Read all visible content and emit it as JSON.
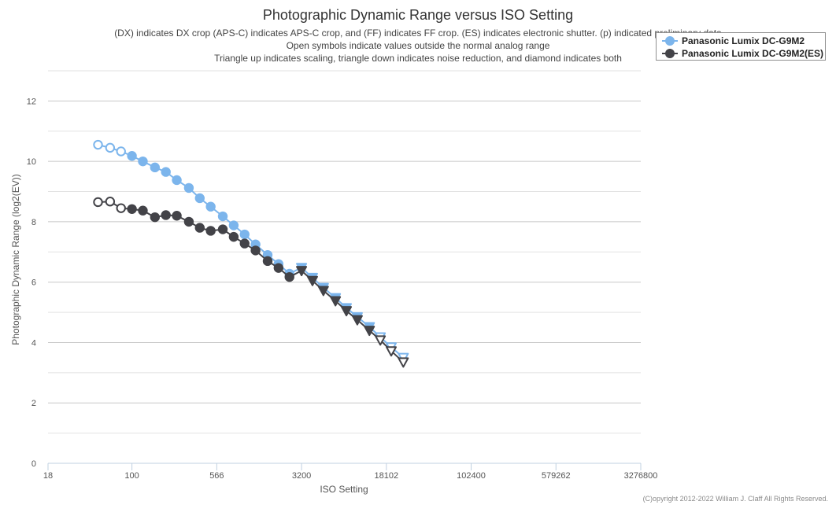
{
  "chart_data": {
    "type": "scatter",
    "title": "Photographic Dynamic Range versus ISO Setting",
    "subtitle_lines": [
      "(DX) indicates DX crop (APS-C) indicates APS-C crop, and (FF) indicates FF crop. (ES) indicates electronic shutter. (p) indicated preliminary data",
      "Open symbols indicate values outside the normal analog range",
      "Triangle up indicates scaling, triangle down indicates noise reduction, and diamond indicates both"
    ],
    "xlabel": "ISO Setting",
    "ylabel": "Photographic Dynamic Range (log2(EV))",
    "x_scale": "log",
    "xlim": [
      18,
      3276800
    ],
    "x_ticks": [
      18,
      100,
      566,
      3200,
      18102,
      102400,
      579262,
      3276800
    ],
    "x_tick_labels": [
      "18",
      "100",
      "566",
      "3200",
      "18102",
      "102400",
      "579262",
      "3276800"
    ],
    "ylim": [
      0,
      13
    ],
    "y_ticks": [
      0,
      2,
      4,
      6,
      8,
      10,
      12
    ],
    "y_tick_labels": [
      "0",
      "2",
      "4",
      "6",
      "8",
      "10",
      "12"
    ],
    "legend_position": "top-right",
    "series": [
      {
        "name": "Panasonic Lumix DC-G9M2",
        "color": "#7cb5ec",
        "points": [
          {
            "iso": 50,
            "dr": 10.55,
            "marker": "circle",
            "open": true
          },
          {
            "iso": 64,
            "dr": 10.45,
            "marker": "circle",
            "open": true
          },
          {
            "iso": 80,
            "dr": 10.33,
            "marker": "circle",
            "open": true
          },
          {
            "iso": 100,
            "dr": 10.18,
            "marker": "circle",
            "open": false
          },
          {
            "iso": 125,
            "dr": 10.0,
            "marker": "circle",
            "open": false
          },
          {
            "iso": 160,
            "dr": 9.8,
            "marker": "circle",
            "open": false
          },
          {
            "iso": 200,
            "dr": 9.65,
            "marker": "circle",
            "open": false
          },
          {
            "iso": 250,
            "dr": 9.38,
            "marker": "circle",
            "open": false
          },
          {
            "iso": 320,
            "dr": 9.12,
            "marker": "circle",
            "open": false
          },
          {
            "iso": 400,
            "dr": 8.78,
            "marker": "circle",
            "open": false
          },
          {
            "iso": 500,
            "dr": 8.5,
            "marker": "circle",
            "open": false
          },
          {
            "iso": 640,
            "dr": 8.18,
            "marker": "circle",
            "open": false
          },
          {
            "iso": 800,
            "dr": 7.88,
            "marker": "circle",
            "open": false
          },
          {
            "iso": 1000,
            "dr": 7.58,
            "marker": "circle",
            "open": false
          },
          {
            "iso": 1250,
            "dr": 7.25,
            "marker": "circle",
            "open": false
          },
          {
            "iso": 1600,
            "dr": 6.9,
            "marker": "circle",
            "open": false
          },
          {
            "iso": 2000,
            "dr": 6.6,
            "marker": "circle",
            "open": false
          },
          {
            "iso": 2500,
            "dr": 6.28,
            "marker": "circle",
            "open": false
          },
          {
            "iso": 3200,
            "dr": 6.48,
            "marker": "triangle-down",
            "open": false
          },
          {
            "iso": 4000,
            "dr": 6.15,
            "marker": "triangle-down",
            "open": false
          },
          {
            "iso": 5000,
            "dr": 5.82,
            "marker": "triangle-down",
            "open": false
          },
          {
            "iso": 6400,
            "dr": 5.48,
            "marker": "triangle-down",
            "open": false
          },
          {
            "iso": 8000,
            "dr": 5.15,
            "marker": "triangle-down",
            "open": false
          },
          {
            "iso": 10000,
            "dr": 4.85,
            "marker": "triangle-down",
            "open": false
          },
          {
            "iso": 12800,
            "dr": 4.52,
            "marker": "triangle-down",
            "open": false
          },
          {
            "iso": 16000,
            "dr": 4.18,
            "marker": "triangle-down",
            "open": true
          },
          {
            "iso": 20000,
            "dr": 3.85,
            "marker": "triangle-down",
            "open": true
          },
          {
            "iso": 25600,
            "dr": 3.5,
            "marker": "triangle-down",
            "open": true
          }
        ]
      },
      {
        "name": "Panasonic Lumix DC-G9M2(ES)",
        "color": "#434348",
        "points": [
          {
            "iso": 50,
            "dr": 8.65,
            "marker": "circle",
            "open": true
          },
          {
            "iso": 64,
            "dr": 8.67,
            "marker": "circle",
            "open": true
          },
          {
            "iso": 80,
            "dr": 8.45,
            "marker": "circle",
            "open": true
          },
          {
            "iso": 100,
            "dr": 8.42,
            "marker": "circle",
            "open": false
          },
          {
            "iso": 125,
            "dr": 8.37,
            "marker": "circle",
            "open": false
          },
          {
            "iso": 160,
            "dr": 8.15,
            "marker": "circle",
            "open": false
          },
          {
            "iso": 200,
            "dr": 8.22,
            "marker": "circle",
            "open": false
          },
          {
            "iso": 250,
            "dr": 8.2,
            "marker": "circle",
            "open": false
          },
          {
            "iso": 320,
            "dr": 8.0,
            "marker": "circle",
            "open": false
          },
          {
            "iso": 400,
            "dr": 7.8,
            "marker": "circle",
            "open": false
          },
          {
            "iso": 500,
            "dr": 7.7,
            "marker": "circle",
            "open": false
          },
          {
            "iso": 640,
            "dr": 7.75,
            "marker": "circle",
            "open": false
          },
          {
            "iso": 800,
            "dr": 7.5,
            "marker": "circle",
            "open": false
          },
          {
            "iso": 1000,
            "dr": 7.28,
            "marker": "circle",
            "open": false
          },
          {
            "iso": 1250,
            "dr": 7.05,
            "marker": "circle",
            "open": false
          },
          {
            "iso": 1600,
            "dr": 6.7,
            "marker": "circle",
            "open": false
          },
          {
            "iso": 2000,
            "dr": 6.47,
            "marker": "circle",
            "open": false
          },
          {
            "iso": 2500,
            "dr": 6.17,
            "marker": "circle",
            "open": false
          },
          {
            "iso": 3200,
            "dr": 6.38,
            "marker": "triangle-down",
            "open": false
          },
          {
            "iso": 4000,
            "dr": 6.05,
            "marker": "triangle-down",
            "open": false
          },
          {
            "iso": 5000,
            "dr": 5.72,
            "marker": "triangle-down",
            "open": false
          },
          {
            "iso": 6400,
            "dr": 5.38,
            "marker": "triangle-down",
            "open": false
          },
          {
            "iso": 8000,
            "dr": 5.05,
            "marker": "triangle-down",
            "open": false
          },
          {
            "iso": 10000,
            "dr": 4.75,
            "marker": "triangle-down",
            "open": false
          },
          {
            "iso": 12800,
            "dr": 4.4,
            "marker": "triangle-down",
            "open": false
          },
          {
            "iso": 16000,
            "dr": 4.08,
            "marker": "triangle-down",
            "open": true
          },
          {
            "iso": 20000,
            "dr": 3.72,
            "marker": "triangle-down",
            "open": true
          },
          {
            "iso": 25600,
            "dr": 3.35,
            "marker": "triangle-down",
            "open": true
          }
        ]
      }
    ]
  },
  "copyright": "(C)opyright 2012-2022 William J. Claff All Rights Reserved."
}
